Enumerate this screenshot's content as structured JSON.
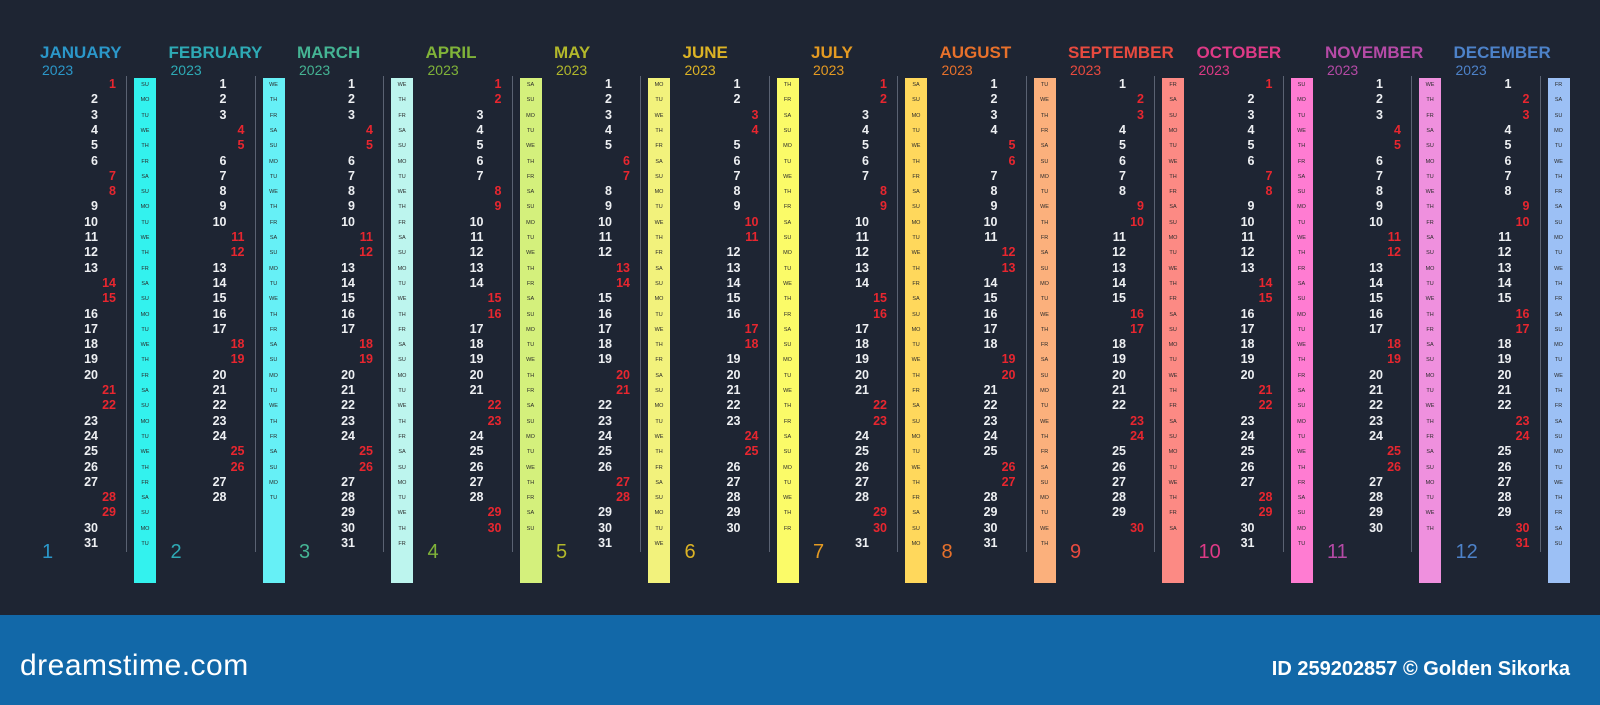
{
  "year": "2023",
  "weekday_abbr": [
    "MO",
    "TU",
    "WE",
    "TH",
    "FR",
    "SA",
    "SU"
  ],
  "months": [
    {
      "name": "JANUARY",
      "number": "1",
      "days": 31,
      "first_weekday": 6,
      "color": "#2b97c9",
      "strip_color": "#33f2ee"
    },
    {
      "name": "FEBRUARY",
      "number": "2",
      "days": 28,
      "first_weekday": 2,
      "color": "#2eaab5",
      "strip_color": "#66f0f6"
    },
    {
      "name": "MARCH",
      "number": "3",
      "days": 31,
      "first_weekday": 2,
      "color": "#45b494",
      "strip_color": "#bdf5ee"
    },
    {
      "name": "APRIL",
      "number": "4",
      "days": 30,
      "first_weekday": 5,
      "color": "#80b339",
      "strip_color": "#d4f07c"
    },
    {
      "name": "MAY",
      "number": "5",
      "days": 31,
      "first_weekday": 0,
      "color": "#b2b82b",
      "strip_color": "#f2f27c"
    },
    {
      "name": "JUNE",
      "number": "6",
      "days": 30,
      "first_weekday": 3,
      "color": "#dcb325",
      "strip_color": "#fbfb68"
    },
    {
      "name": "JULY",
      "number": "7",
      "days": 31,
      "first_weekday": 5,
      "color": "#e49a22",
      "strip_color": "#ffd85c"
    },
    {
      "name": "AUGUST",
      "number": "8",
      "days": 31,
      "first_weekday": 1,
      "color": "#e8712b",
      "strip_color": "#fbb07c"
    },
    {
      "name": "SEPTEMBER",
      "number": "9",
      "days": 30,
      "first_weekday": 4,
      "color": "#e84a3f",
      "strip_color": "#fc8a84"
    },
    {
      "name": "OCTOBER",
      "number": "10",
      "days": 31,
      "first_weekday": 6,
      "color": "#de3a86",
      "strip_color": "#ff7cd2"
    },
    {
      "name": "NOVEMBER",
      "number": "11",
      "days": 30,
      "first_weekday": 2,
      "color": "#b54aa6",
      "strip_color": "#ef90de"
    },
    {
      "name": "DECEMBER",
      "number": "12",
      "days": 31,
      "first_weekday": 4,
      "color": "#4d82c9",
      "strip_color": "#9cc0f5"
    }
  ],
  "footer": {
    "logo": "dreamstime.com",
    "image_id": "ID 259202857 © Golden Sikorka"
  }
}
